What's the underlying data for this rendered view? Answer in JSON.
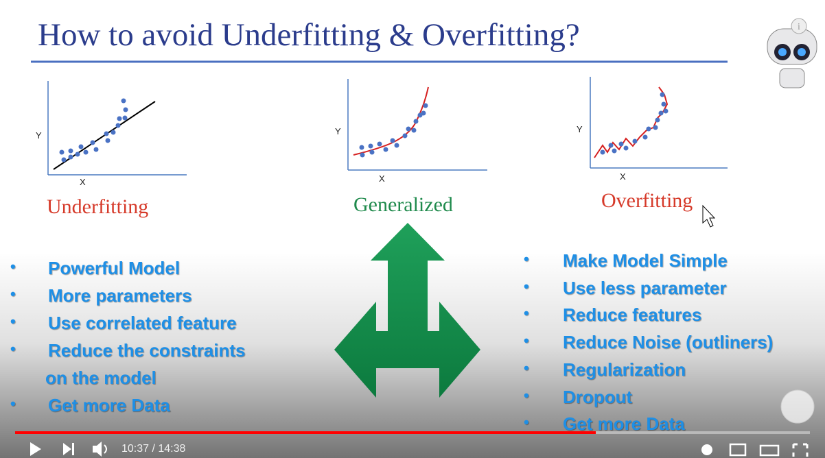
{
  "slide": {
    "title": "How to avoid Underfitting & Overfitting?",
    "plots": [
      {
        "y_label": "Y",
        "x_label": "X",
        "caption": "Underfitting"
      },
      {
        "y_label": "Y",
        "x_label": "X",
        "caption": "Generalized"
      },
      {
        "y_label": "Y",
        "x_label": "X",
        "caption": "Overfitting"
      }
    ],
    "left_bullets": [
      [
        "Powerful Model"
      ],
      [
        "More parameters"
      ],
      [
        "Use correlated feature"
      ],
      [
        "Reduce the constraints",
        "on the model"
      ],
      [
        "Get more Data"
      ]
    ],
    "right_bullets": [
      [
        "Make Model Simple"
      ],
      [
        "Use less parameter"
      ],
      [
        "Reduce features"
      ],
      [
        "Reduce Noise (outliners)"
      ],
      [
        "Regularization"
      ],
      [
        "Dropout"
      ],
      [
        "Get more Data"
      ]
    ]
  },
  "player": {
    "time": "10:37 / 14:38"
  }
}
